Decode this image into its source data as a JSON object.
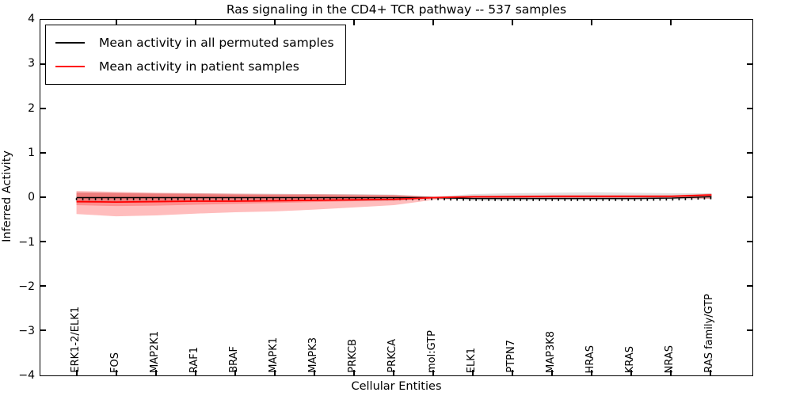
{
  "title": "Ras signaling in the CD4+ TCR pathway -- 537 samples",
  "axes": {
    "ylabel": "Inferred Activity",
    "xlabel": "Cellular Entities",
    "ytick_labels": [
      "4",
      "3",
      "2",
      "1",
      "0",
      "−1",
      "−2",
      "−3",
      "−4"
    ]
  },
  "legend": {
    "entries": [
      {
        "label": "Mean activity in all permuted samples",
        "color": "#000000"
      },
      {
        "label": "Mean activity in patient samples",
        "color": "#ff0000"
      }
    ]
  },
  "chart_data": {
    "type": "line",
    "title": "Ras signaling in the CD4+ TCR pathway -- 537 samples",
    "xlabel": "Cellular Entities",
    "ylabel": "Inferred Activity",
    "ylim": [
      -4,
      4
    ],
    "grid": false,
    "legend_position": "upper left",
    "categories": [
      "ERK1-2/ELK1",
      "FOS",
      "MAP2K1",
      "RAF1",
      "BRAF",
      "MAPK1",
      "MAPK3",
      "PRKCB",
      "PRKCA",
      "mol:GTP",
      "ELK1",
      "PTPN7",
      "MAP3K8",
      "HRAS",
      "KRAS",
      "NRAS",
      "RAS family/GTP"
    ],
    "series": [
      {
        "name": "Mean activity in all permuted samples",
        "color": "#000000",
        "values": [
          0.0,
          0.0,
          0.0,
          0.0,
          0.0,
          0.0,
          0.0,
          0.0,
          0.0,
          0.0,
          -0.02,
          -0.02,
          -0.02,
          -0.02,
          -0.02,
          -0.01,
          0.02
        ]
      },
      {
        "name": "Mean activity in patient samples",
        "color": "#ff0000",
        "values": [
          -0.09,
          -0.1,
          -0.09,
          -0.08,
          -0.08,
          -0.07,
          -0.06,
          -0.05,
          -0.04,
          0.0,
          0.02,
          0.02,
          0.03,
          0.03,
          0.03,
          0.03,
          0.06
        ]
      }
    ],
    "bands": [
      {
        "name": "permuted-samples-std",
        "color": "#000000",
        "opacity": 0.12,
        "upper": [
          0.12,
          0.11,
          0.1,
          0.1,
          0.09,
          0.09,
          0.08,
          0.08,
          0.07,
          0.02,
          0.08,
          0.1,
          0.11,
          0.12,
          0.11,
          0.1,
          0.1
        ],
        "lower": [
          -0.12,
          -0.11,
          -0.1,
          -0.1,
          -0.09,
          -0.09,
          -0.08,
          -0.08,
          -0.07,
          -0.02,
          -0.07,
          -0.07,
          -0.06,
          -0.06,
          -0.06,
          -0.05,
          -0.03
        ]
      },
      {
        "name": "patient-samples-outer-band",
        "color": "#ff0000",
        "opacity": 0.26,
        "upper": [
          0.15,
          0.13,
          0.11,
          0.1,
          0.09,
          0.08,
          0.08,
          0.07,
          0.06,
          0.02,
          0.04,
          0.05,
          0.05,
          0.05,
          0.05,
          0.05,
          0.09
        ],
        "lower": [
          -0.37,
          -0.42,
          -0.4,
          -0.36,
          -0.33,
          -0.31,
          -0.27,
          -0.22,
          -0.17,
          -0.05,
          -0.02,
          -0.02,
          -0.01,
          -0.01,
          -0.01,
          -0.01,
          -0.03
        ]
      },
      {
        "name": "patient-samples-inner-band",
        "color": "#ff0000",
        "opacity": 0.25,
        "upper": [
          0.11,
          0.1,
          0.09,
          0.08,
          0.07,
          0.06,
          0.06,
          0.05,
          0.05,
          0.01,
          0.03,
          0.04,
          0.04,
          0.04,
          0.04,
          0.04,
          0.07
        ],
        "lower": [
          -0.17,
          -0.19,
          -0.18,
          -0.16,
          -0.14,
          -0.12,
          -0.1,
          -0.08,
          -0.06,
          -0.02,
          0.0,
          0.0,
          0.01,
          0.01,
          0.01,
          0.02,
          0.04
        ]
      }
    ]
  }
}
